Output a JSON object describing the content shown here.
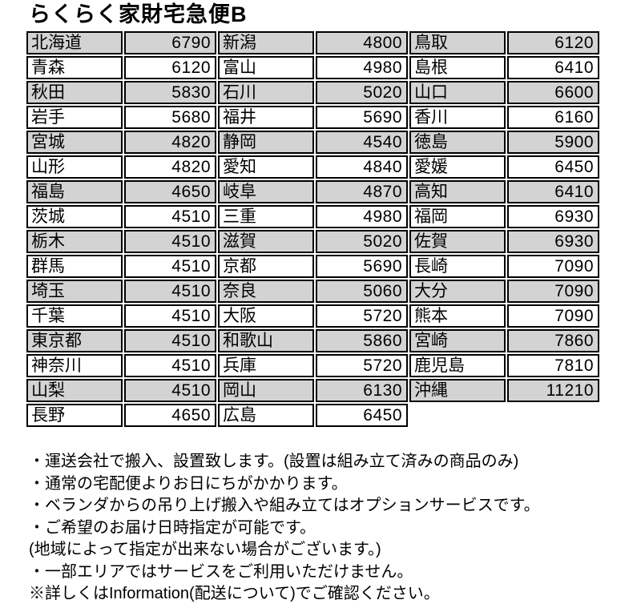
{
  "title": "らくらく家財宅急便B",
  "colors": {
    "row_shaded": "#d3d3d3",
    "border": "#000000",
    "background": "#ffffff",
    "text": "#000000"
  },
  "table": {
    "rows": [
      {
        "groups": [
          {
            "name": "北海道",
            "price": "6790"
          },
          {
            "name": "新潟",
            "price": "4800"
          },
          {
            "name": "鳥取",
            "price": "6120"
          }
        ]
      },
      {
        "groups": [
          {
            "name": "青森",
            "price": "6120"
          },
          {
            "name": "富山",
            "price": "4980"
          },
          {
            "name": "島根",
            "price": "6410"
          }
        ]
      },
      {
        "groups": [
          {
            "name": "秋田",
            "price": "5830"
          },
          {
            "name": "石川",
            "price": "5020"
          },
          {
            "name": "山口",
            "price": "6600"
          }
        ]
      },
      {
        "groups": [
          {
            "name": "岩手",
            "price": "5680"
          },
          {
            "name": "福井",
            "price": "5690"
          },
          {
            "name": "香川",
            "price": "6160"
          }
        ]
      },
      {
        "groups": [
          {
            "name": "宮城",
            "price": "4820"
          },
          {
            "name": "静岡",
            "price": "4540"
          },
          {
            "name": "徳島",
            "price": "5900"
          }
        ]
      },
      {
        "groups": [
          {
            "name": "山形",
            "price": "4820"
          },
          {
            "name": "愛知",
            "price": "4840"
          },
          {
            "name": "愛媛",
            "price": "6450"
          }
        ]
      },
      {
        "groups": [
          {
            "name": "福島",
            "price": "4650"
          },
          {
            "name": "岐阜",
            "price": "4870"
          },
          {
            "name": "高知",
            "price": "6410"
          }
        ]
      },
      {
        "groups": [
          {
            "name": "茨城",
            "price": "4510"
          },
          {
            "name": "三重",
            "price": "4980"
          },
          {
            "name": "福岡",
            "price": "6930"
          }
        ]
      },
      {
        "groups": [
          {
            "name": "栃木",
            "price": "4510"
          },
          {
            "name": "滋賀",
            "price": "5020"
          },
          {
            "name": "佐賀",
            "price": "6930"
          }
        ]
      },
      {
        "groups": [
          {
            "name": "群馬",
            "price": "4510"
          },
          {
            "name": "京都",
            "price": "5690"
          },
          {
            "name": "長崎",
            "price": "7090"
          }
        ]
      },
      {
        "groups": [
          {
            "name": "埼玉",
            "price": "4510"
          },
          {
            "name": "奈良",
            "price": "5060"
          },
          {
            "name": "大分",
            "price": "7090"
          }
        ]
      },
      {
        "groups": [
          {
            "name": "千葉",
            "price": "4510"
          },
          {
            "name": "大阪",
            "price": "5720"
          },
          {
            "name": "熊本",
            "price": "7090"
          }
        ]
      },
      {
        "groups": [
          {
            "name": "東京都",
            "price": "4510"
          },
          {
            "name": "和歌山",
            "price": "5860"
          },
          {
            "name": "宮崎",
            "price": "7860"
          }
        ]
      },
      {
        "groups": [
          {
            "name": "神奈川",
            "price": "4510"
          },
          {
            "name": "兵庫",
            "price": "5720"
          },
          {
            "name": "鹿児島",
            "price": "7810"
          }
        ]
      },
      {
        "groups": [
          {
            "name": "山梨",
            "price": "4510"
          },
          {
            "name": "岡山",
            "price": "6130"
          },
          {
            "name": "沖縄",
            "price": "11210"
          }
        ]
      },
      {
        "groups": [
          {
            "name": "長野",
            "price": "4650"
          },
          {
            "name": "広島",
            "price": "6450"
          },
          null
        ]
      }
    ]
  },
  "notes": [
    "・運送会社で搬入、設置致します。(設置は組み立て済みの商品のみ)",
    "・通常の宅配便よりお日にちがかかります。",
    "・ベランダからの吊り上げ搬入や組み立てはオプションサービスです。",
    "・ご希望のお届け日時指定が可能です。",
    "(地域によって指定が出来ない場合がございます。)",
    "・一部エリアではサービスをご利用いただけません。",
    "※詳しくはInformation(配送について)でご確認ください。"
  ]
}
